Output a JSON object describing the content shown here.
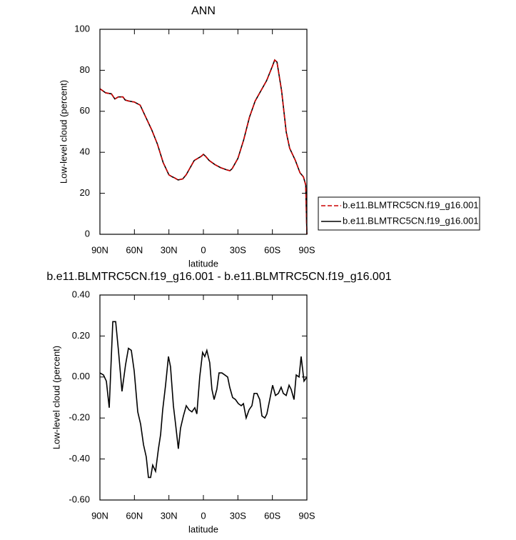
{
  "chart_data": [
    {
      "type": "line",
      "title": "ANN",
      "xlabel": "latitude",
      "ylabel": "Low-level cloud (percent)",
      "x": [
        90,
        85,
        80,
        77,
        74,
        70,
        68,
        65,
        60,
        55,
        50,
        45,
        40,
        35,
        30,
        27,
        25,
        22,
        18,
        15,
        12,
        8,
        5,
        2,
        0,
        -2,
        -5,
        -10,
        -15,
        -20,
        -23,
        -25,
        -30,
        -35,
        -40,
        -45,
        -50,
        -55,
        -60,
        -62,
        -64,
        -68,
        -72,
        -75,
        -80,
        -84,
        -87,
        -89,
        -90
      ],
      "series": [
        {
          "name": "b.e11.BLMTRC5CN.f19_g16.001",
          "color": "#cc0000",
          "dashed": true,
          "values": [
            71,
            69,
            68.5,
            66,
            67,
            67,
            65.5,
            65,
            64.5,
            63,
            57,
            51,
            44,
            35,
            29,
            28,
            27.5,
            26.5,
            27,
            29,
            32,
            36,
            37,
            38,
            39,
            38,
            36,
            34,
            32.5,
            31.5,
            31,
            32,
            37,
            46,
            57,
            65,
            70,
            75,
            82,
            85,
            84,
            70,
            50,
            42,
            36,
            30,
            28,
            24,
            0
          ]
        },
        {
          "name": "b.e11.BLMTRC5CN.f19_g16.001",
          "color": "#000000",
          "dashed": false,
          "values": [
            71,
            69,
            68.5,
            66,
            67,
            67,
            65.5,
            65,
            64.5,
            63,
            57,
            51,
            44,
            35,
            29,
            28,
            27.5,
            26.5,
            27,
            29,
            32,
            36,
            37,
            38,
            39,
            38,
            36,
            34,
            32.5,
            31.5,
            31,
            32,
            37,
            46,
            57,
            65,
            70,
            75,
            82,
            85,
            84,
            70,
            50,
            42,
            36,
            30,
            28,
            24,
            0
          ]
        }
      ],
      "xlim": [
        90,
        -90
      ],
      "xticks": [
        {
          "value": 90,
          "label": "90N"
        },
        {
          "value": 60,
          "label": "60N"
        },
        {
          "value": 30,
          "label": "30N"
        },
        0,
        {
          "value": -30,
          "label": "30S"
        },
        {
          "value": -60,
          "label": "60S"
        },
        {
          "value": -90,
          "label": "90S"
        }
      ],
      "ylim": [
        0,
        100
      ],
      "yticks": [
        0,
        20,
        40,
        60,
        80,
        100
      ],
      "legend": "right"
    },
    {
      "type": "line",
      "title": "b.e11.BLMTRC5CN.f19_g16.001 - b.e11.BLMTRC5CN.f19_g16.001",
      "xlabel": "latitude",
      "ylabel": "Low-level cloud (percent)",
      "x": [
        90,
        86.9,
        84.4,
        81.9,
        78.8,
        76.3,
        73.9,
        70.8,
        67.7,
        65.2,
        62.7,
        60.2,
        57.1,
        54.6,
        52.1,
        49.7,
        47.8,
        45.9,
        44.1,
        41.6,
        39.1,
        37.2,
        35.4,
        32.9,
        30.4,
        28.6,
        26.1,
        24.2,
        21.8,
        19.9,
        17.4,
        14.9,
        12.5,
        10,
        7.5,
        5.7,
        3.2,
        0.7,
        -1.2,
        -3,
        -5.5,
        -7.4,
        -9.3,
        -11.7,
        -13.6,
        -16.1,
        -18.6,
        -21.1,
        -22.9,
        -25.4,
        -27.9,
        -30.4,
        -32.9,
        -34.8,
        -37.2,
        -39.7,
        -42.2,
        -44.1,
        -46.6,
        -49,
        -50.9,
        -53.4,
        -55.2,
        -57.7,
        -60.2,
        -62.7,
        -65.2,
        -67.6,
        -69.5,
        -72,
        -74.5,
        -76.3,
        -78.8,
        -80.7,
        -83.2,
        -85,
        -87.5,
        -90
      ],
      "series": [
        {
          "name": "b.e11.BLMTRC5CN.f19_g16.001 - b.e11.BLMTRC5CN.f19_g16.001",
          "color": "#000000",
          "dashed": false,
          "values": [
            0.02,
            0.01,
            -0.02,
            -0.15,
            0.27,
            0.27,
            0.13,
            -0.07,
            0.06,
            0.14,
            0.13,
            0.03,
            -0.17,
            -0.23,
            -0.33,
            -0.39,
            -0.49,
            -0.49,
            -0.43,
            -0.46,
            -0.35,
            -0.28,
            -0.16,
            -0.04,
            0.1,
            0.05,
            -0.14,
            -0.23,
            -0.35,
            -0.25,
            -0.19,
            -0.14,
            -0.16,
            -0.17,
            -0.15,
            -0.18,
            0.0,
            0.12,
            0.1,
            0.13,
            0.07,
            -0.06,
            -0.11,
            -0.06,
            0.02,
            0.02,
            0.01,
            0.0,
            -0.05,
            -0.1,
            -0.11,
            -0.13,
            -0.14,
            -0.13,
            -0.2,
            -0.16,
            -0.14,
            -0.08,
            -0.08,
            -0.11,
            -0.19,
            -0.2,
            -0.18,
            -0.11,
            -0.04,
            -0.09,
            -0.08,
            -0.05,
            -0.08,
            -0.09,
            -0.04,
            -0.06,
            -0.11,
            0.01,
            0.0,
            0.1,
            -0.02,
            0.0
          ]
        }
      ],
      "xlim": [
        90,
        -90
      ],
      "xticks": [
        {
          "value": 90,
          "label": "90N"
        },
        {
          "value": 60,
          "label": "60N"
        },
        {
          "value": 30,
          "label": "30N"
        },
        0,
        {
          "value": -30,
          "label": "30S"
        },
        {
          "value": -60,
          "label": "60S"
        },
        {
          "value": -90,
          "label": "90S"
        }
      ],
      "ylim": [
        -0.6,
        0.4
      ],
      "yticks": [
        {
          "value": -0.6,
          "label": "-0.60"
        },
        {
          "value": -0.4,
          "label": "-0.40"
        },
        {
          "value": -0.2,
          "label": "-0.20"
        },
        {
          "value": 0,
          "label": "0.00"
        },
        {
          "value": 0.2,
          "label": "0.20"
        },
        {
          "value": 0.4,
          "label": "0.40"
        }
      ]
    }
  ]
}
